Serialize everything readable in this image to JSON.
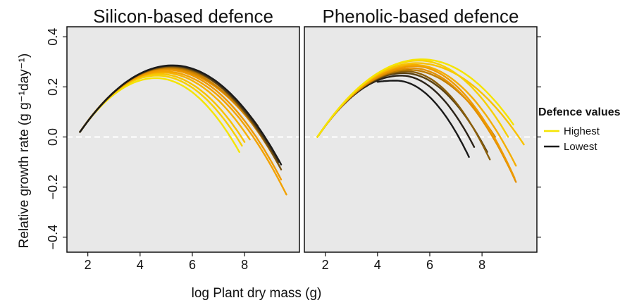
{
  "figure": {
    "ylabel": "Relative growth rate (g g⁻¹day⁻¹)",
    "xlabel": "log Plant dry mass (g)",
    "legend": {
      "title": "Defence values",
      "entries": [
        {
          "label": "Highest",
          "color": "#F5E400"
        },
        {
          "label": "Lowest",
          "color": "#1A1A1A"
        }
      ]
    },
    "colors": {
      "panel_bg": "#E8E8E8",
      "zero_line": "#FFFFFF",
      "highest": "#F5E400",
      "mid": "#F0A000",
      "lowest": "#1A1A1A"
    }
  },
  "chart_data": [
    {
      "type": "line",
      "title": "Silicon-based defence",
      "xlabel": "log Plant dry mass (g)",
      "ylabel": "Relative growth rate (g g⁻¹day⁻¹)",
      "xlim": [
        1.2,
        10.1
      ],
      "ylim": [
        -0.46,
        0.44
      ],
      "xticks": [
        2,
        4,
        6,
        8
      ],
      "yticks": [
        -0.4,
        -0.2,
        0.0,
        0.2,
        0.4
      ],
      "ytick_labels": [
        "−0.4",
        "−0.2",
        "0.0",
        "0.2",
        "0.4"
      ],
      "reference_line": {
        "y": 0.0,
        "style": "dashed"
      },
      "grid": false,
      "series": [
        {
          "color": "#F5E400",
          "x": [
            1.7,
            4.6,
            7.8
          ],
          "y": [
            0.02,
            0.235,
            -0.06
          ]
        },
        {
          "color": "#F7D000",
          "x": [
            1.7,
            4.65,
            7.9
          ],
          "y": [
            0.02,
            0.245,
            -0.035
          ]
        },
        {
          "color": "#F8C200",
          "x": [
            1.7,
            4.7,
            8.0
          ],
          "y": [
            0.02,
            0.252,
            -0.02
          ]
        },
        {
          "color": "#F6B200",
          "x": [
            1.7,
            4.8,
            8.2
          ],
          "y": [
            0.02,
            0.258,
            -0.01
          ]
        },
        {
          "color": "#F2A200",
          "x": [
            1.7,
            4.9,
            9.6
          ],
          "y": [
            0.02,
            0.262,
            -0.23
          ]
        },
        {
          "color": "#EE9A00",
          "x": [
            1.7,
            5.0,
            9.4
          ],
          "y": [
            0.02,
            0.268,
            -0.17
          ]
        },
        {
          "color": "#E39000",
          "x": [
            1.7,
            5.0,
            8.6
          ],
          "y": [
            0.02,
            0.272,
            0.01
          ]
        },
        {
          "color": "#C98000",
          "x": [
            1.7,
            5.1,
            9.35
          ],
          "y": [
            0.02,
            0.276,
            -0.12
          ]
        },
        {
          "color": "#A06A08",
          "x": [
            1.7,
            5.15,
            8.5
          ],
          "y": [
            0.02,
            0.279,
            0.045
          ]
        },
        {
          "color": "#7A5410",
          "x": [
            1.7,
            5.2,
            9.4
          ],
          "y": [
            0.02,
            0.282,
            -0.13
          ]
        },
        {
          "color": "#4A3818",
          "x": [
            1.7,
            5.2,
            9.3
          ],
          "y": [
            0.02,
            0.284,
            -0.1
          ]
        },
        {
          "color": "#1A1A1A",
          "x": [
            1.7,
            5.25,
            9.4
          ],
          "y": [
            0.02,
            0.286,
            -0.11
          ]
        }
      ]
    },
    {
      "type": "line",
      "title": "Phenolic-based defence",
      "xlabel": "log Plant dry mass (g)",
      "ylabel": "Relative growth rate (g g⁻¹day⁻¹)",
      "xlim": [
        1.2,
        10.1
      ],
      "ylim": [
        -0.46,
        0.44
      ],
      "xticks": [
        2,
        4,
        6,
        8
      ],
      "yticks": [
        -0.4,
        -0.2,
        0.0,
        0.2,
        0.4
      ],
      "reference_line": {
        "y": 0.0,
        "style": "dashed"
      },
      "grid": false,
      "series": [
        {
          "color": "#1A1A1A",
          "x": [
            4.0,
            4.7,
            7.5
          ],
          "y": [
            0.22,
            0.225,
            -0.08
          ]
        },
        {
          "color": "#2A2218",
          "x": [
            1.7,
            4.9,
            7.7
          ],
          "y": [
            0.0,
            0.245,
            -0.04
          ]
        },
        {
          "color": "#5A4212",
          "x": [
            1.7,
            5.0,
            8.2
          ],
          "y": [
            0.0,
            0.255,
            -0.06
          ]
        },
        {
          "color": "#8A5E0A",
          "x": [
            1.7,
            5.1,
            8.3
          ],
          "y": [
            0.0,
            0.262,
            -0.09
          ]
        },
        {
          "color": "#C07E00",
          "x": [
            1.7,
            5.2,
            8.5
          ],
          "y": [
            0.0,
            0.268,
            0.0
          ]
        },
        {
          "color": "#E39000",
          "x": [
            1.7,
            5.3,
            9.3
          ],
          "y": [
            0.0,
            0.275,
            -0.18
          ]
        },
        {
          "color": "#EE9A00",
          "x": [
            1.7,
            5.4,
            9.25
          ],
          "y": [
            0.0,
            0.283,
            -0.165
          ]
        },
        {
          "color": "#F4AE00",
          "x": [
            1.7,
            5.4,
            9.3
          ],
          "y": [
            0.0,
            0.288,
            -0.115
          ]
        },
        {
          "color": "#F8C200",
          "x": [
            1.7,
            5.5,
            9.6
          ],
          "y": [
            0.0,
            0.295,
            -0.03
          ]
        },
        {
          "color": "#F7D000",
          "x": [
            1.7,
            5.6,
            9.0
          ],
          "y": [
            0.0,
            0.305,
            0.0
          ]
        },
        {
          "color": "#F5E400",
          "x": [
            1.7,
            5.7,
            9.2
          ],
          "y": [
            0.0,
            0.31,
            0.05
          ]
        }
      ]
    }
  ]
}
